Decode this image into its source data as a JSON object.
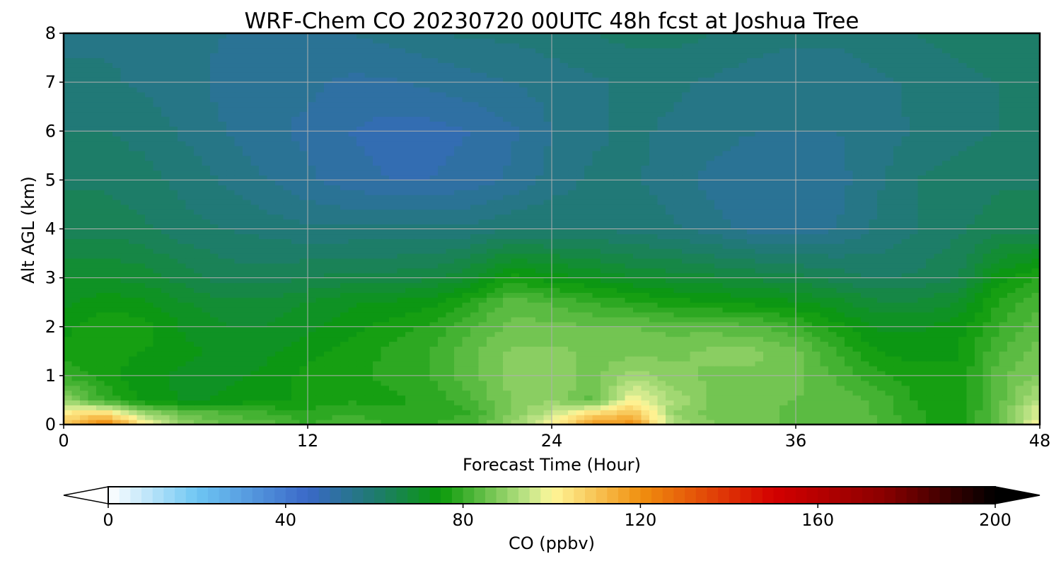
{
  "chart_data": {
    "type": "heatmap",
    "title": "WRF-Chem CO  20230720 00UTC 48h fcst at Joshua Tree",
    "xlabel": "Forecast Time (Hour)",
    "ylabel": "Alt AGL (km)",
    "xlim": [
      0,
      48
    ],
    "ylim": [
      0,
      8
    ],
    "x_ticks": [
      "0",
      "12",
      "24",
      "36",
      "48"
    ],
    "y_ticks": [
      "0",
      "1",
      "2",
      "3",
      "4",
      "5",
      "6",
      "7",
      "8"
    ],
    "grid": true,
    "colorbar": {
      "label": "CO  (ppbv)",
      "min": 0,
      "max": 200,
      "ticks": [
        "0",
        "40",
        "80",
        "120",
        "160",
        "200"
      ],
      "extend": "both",
      "orientation": "horizontal",
      "stops": [
        {
          "value": 0,
          "color": "#ffffff"
        },
        {
          "value": 20,
          "color": "#6ec6f3"
        },
        {
          "value": 45,
          "color": "#3a68c8"
        },
        {
          "value": 60,
          "color": "#1f7a70"
        },
        {
          "value": 75,
          "color": "#0a9a0a"
        },
        {
          "value": 95,
          "color": "#c4e68a"
        },
        {
          "value": 100,
          "color": "#fff79a"
        },
        {
          "value": 120,
          "color": "#f0900f"
        },
        {
          "value": 150,
          "color": "#d40000"
        },
        {
          "value": 175,
          "color": "#8a0000"
        },
        {
          "value": 200,
          "color": "#000000"
        }
      ]
    },
    "field": {
      "x": [
        0,
        2,
        4,
        6,
        8,
        10,
        12,
        14,
        16,
        18,
        20,
        22,
        24,
        26,
        28,
        30,
        32,
        34,
        36,
        38,
        40,
        42,
        44,
        46,
        48
      ],
      "y": [
        0,
        0.25,
        0.5,
        1,
        1.5,
        2,
        2.5,
        3,
        4,
        5,
        6,
        7,
        8
      ],
      "values": [
        [
          110,
          125,
          102,
          90,
          85,
          84,
          80,
          82,
          80,
          80,
          82,
          90,
          100,
          118,
          120,
          92,
          88,
          86,
          84,
          84,
          83,
          78,
          76,
          85,
          100
        ],
        [
          102,
          104,
          90,
          84,
          82,
          80,
          78,
          80,
          78,
          78,
          80,
          88,
          94,
          104,
          110,
          90,
          86,
          86,
          84,
          84,
          82,
          78,
          76,
          84,
          98
        ],
        [
          90,
          80,
          74,
          72,
          73,
          74,
          76,
          77,
          77,
          78,
          82,
          88,
          90,
          84,
          100,
          92,
          87,
          86,
          85,
          84,
          82,
          77,
          75,
          84,
          94
        ],
        [
          80,
          76,
          73,
          72,
          72,
          73,
          76,
          77,
          78,
          80,
          84,
          88,
          90,
          86,
          92,
          88,
          87,
          87,
          86,
          82,
          78,
          76,
          75,
          84,
          88
        ],
        [
          76,
          76,
          75,
          73,
          72,
          72,
          74,
          76,
          78,
          80,
          84,
          88,
          88,
          87,
          86,
          87,
          88,
          88,
          86,
          80,
          75,
          74,
          75,
          82,
          86
        ],
        [
          74,
          77,
          76,
          72,
          70,
          70,
          72,
          74,
          76,
          78,
          82,
          86,
          86,
          85,
          85,
          84,
          84,
          83,
          80,
          76,
          72,
          72,
          74,
          80,
          84
        ],
        [
          72,
          74,
          73,
          70,
          68,
          68,
          70,
          72,
          73,
          74,
          78,
          84,
          82,
          80,
          78,
          76,
          75,
          74,
          73,
          71,
          68,
          68,
          70,
          78,
          82
        ],
        [
          70,
          70,
          69,
          66,
          64,
          64,
          65,
          66,
          66,
          67,
          70,
          76,
          74,
          72,
          70,
          69,
          68,
          67,
          66,
          64,
          62,
          63,
          65,
          74,
          78
        ],
        [
          64,
          64,
          63,
          61,
          60,
          59,
          58,
          58,
          58,
          58,
          58,
          60,
          60,
          60,
          59,
          58,
          56,
          54,
          53,
          55,
          58,
          60,
          62,
          64,
          64
        ],
        [
          62,
          62,
          61,
          59,
          57,
          55,
          53,
          51,
          50,
          50,
          51,
          53,
          56,
          58,
          58,
          56,
          54,
          53,
          53,
          54,
          57,
          60,
          61,
          62,
          62
        ],
        [
          60,
          60,
          59,
          57,
          55,
          53,
          52,
          50,
          49,
          49,
          50,
          52,
          55,
          57,
          58,
          57,
          56,
          55,
          55,
          55,
          56,
          58,
          59,
          60,
          60
        ],
        [
          58,
          58,
          57,
          56,
          54,
          53,
          53,
          52,
          52,
          53,
          54,
          55,
          56,
          57,
          58,
          58,
          57,
          56,
          56,
          56,
          57,
          58,
          59,
          60,
          60
        ],
        [
          57,
          57,
          57,
          56,
          55,
          55,
          55,
          55,
          56,
          57,
          58,
          58,
          59,
          60,
          61,
          61,
          60,
          59,
          58,
          58,
          59,
          60,
          61,
          62,
          62
        ]
      ]
    }
  }
}
